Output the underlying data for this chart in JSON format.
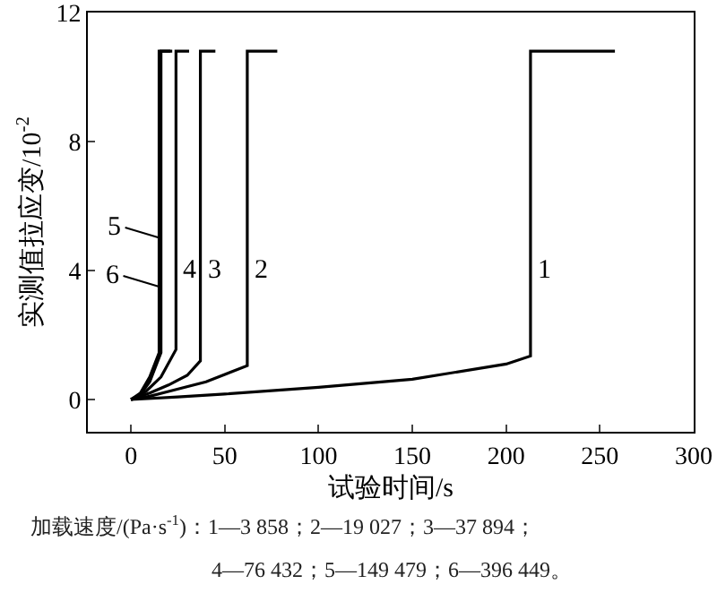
{
  "chart_data": {
    "type": "line",
    "xlabel": "试验时间/s",
    "ylabel": "实测值拉应变/10$^{-2}$",
    "xlim": [
      -23,
      300
    ],
    "xticks": [
      0,
      50,
      100,
      150,
      200,
      250,
      300
    ],
    "ylim": [
      -1,
      12
    ],
    "yticks": [
      0,
      4,
      8,
      12
    ],
    "grid": false,
    "marker": "none",
    "line_style": "solid",
    "series": [
      {
        "color": "#000000",
        "x": [
          0,
          25,
          50,
          100,
          150,
          200,
          213,
          213,
          258
        ],
        "values": [
          0,
          0.08,
          0.17,
          0.38,
          0.63,
          1.1,
          1.35,
          10.8,
          10.8
        ]
      },
      {
        "color": "#000000",
        "x": [
          0,
          10,
          20,
          40,
          62,
          62,
          78
        ],
        "values": [
          0,
          0.1,
          0.25,
          0.55,
          1.05,
          10.8,
          10.8
        ]
      },
      {
        "color": "#000000",
        "x": [
          0,
          10,
          20,
          30,
          37,
          37,
          45
        ],
        "values": [
          0,
          0.2,
          0.45,
          0.75,
          1.2,
          10.8,
          10.8
        ]
      },
      {
        "color": "#000000",
        "x": [
          0,
          8,
          16,
          24,
          24,
          31
        ],
        "values": [
          0,
          0.25,
          0.7,
          1.55,
          10.8,
          10.8
        ]
      },
      {
        "color": "#000000",
        "x": [
          0,
          5,
          10,
          16,
          16,
          22
        ],
        "values": [
          0,
          0.15,
          0.55,
          1.45,
          10.8,
          10.8
        ]
      },
      {
        "color": "#000000",
        "x": [
          0,
          5,
          10,
          15,
          15,
          21
        ],
        "values": [
          0,
          0.2,
          0.7,
          1.45,
          10.8,
          10.8
        ]
      }
    ],
    "annotations": [
      {
        "text": "1",
        "x": 213,
        "y": 4
      },
      {
        "text": "2",
        "x": 62,
        "y": 4
      },
      {
        "text": "3",
        "x": 37,
        "y": 4
      },
      {
        "text": "4",
        "x": 24,
        "y": 4
      },
      {
        "text": "5",
        "x": 16,
        "y": 5
      },
      {
        "text": "6",
        "x": 15,
        "y": 3.5
      },
      "加载速度/(Pa·s$^{-1}$)：1—3 858；2—19 027；3—37 894；",
      "4—76 432；5—149 479；6—396 449。"
    ]
  }
}
